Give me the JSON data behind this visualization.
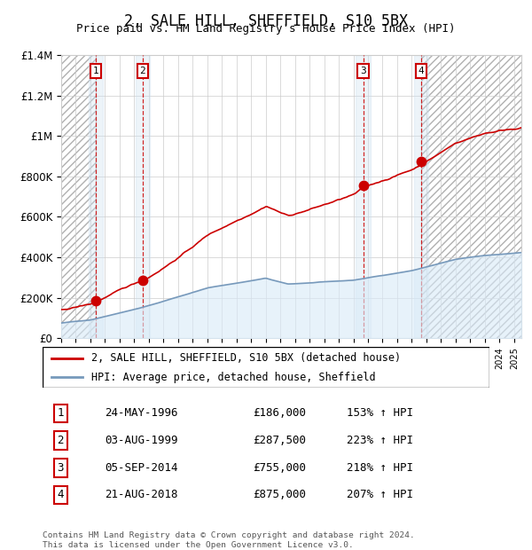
{
  "title": "2, SALE HILL, SHEFFIELD, S10 5BX",
  "subtitle": "Price paid vs. HM Land Registry's House Price Index (HPI)",
  "footer": "Contains HM Land Registry data © Crown copyright and database right 2024.\nThis data is licensed under the Open Government Licence v3.0.",
  "legend_line1": "2, SALE HILL, SHEFFIELD, S10 5BX (detached house)",
  "legend_line2": "HPI: Average price, detached house, Sheffield",
  "sales": [
    {
      "num": 1,
      "date": "24-MAY-1996",
      "year": 1996.38,
      "price": 186000
    },
    {
      "num": 2,
      "date": "03-AUG-1999",
      "year": 1999.58,
      "price": 287500
    },
    {
      "num": 3,
      "date": "05-SEP-2014",
      "year": 2014.67,
      "price": 755000
    },
    {
      "num": 4,
      "date": "21-AUG-2018",
      "year": 2018.63,
      "price": 875000
    }
  ],
  "table_rows": [
    {
      "num": 1,
      "date": "24-MAY-1996",
      "price": "£186,000",
      "hpi": "153% ↑ HPI"
    },
    {
      "num": 2,
      "date": "03-AUG-1999",
      "price": "£287,500",
      "hpi": "223% ↑ HPI"
    },
    {
      "num": 3,
      "date": "05-SEP-2014",
      "price": "£755,000",
      "hpi": "218% ↑ HPI"
    },
    {
      "num": 4,
      "date": "21-AUG-2018",
      "price": "£875,000",
      "hpi": "207% ↑ HPI"
    }
  ],
  "xmin": 1994,
  "xmax": 2025.5,
  "ymin": 0,
  "ymax": 1400000,
  "yticks": [
    0,
    200000,
    400000,
    600000,
    800000,
    1000000,
    1200000,
    1400000
  ],
  "ytick_labels": [
    "£0",
    "£200K",
    "£400K",
    "£600K",
    "£800K",
    "£1M",
    "£1.2M",
    "£1.4M"
  ],
  "line_color": "#cc0000",
  "hpi_line_color": "#7799bb",
  "hpi_fill_color": "#d8eaf8",
  "dashed_color": "#cc0000",
  "label_box_color": "#cc0000",
  "shaded_sale_color": "#cce0f0"
}
